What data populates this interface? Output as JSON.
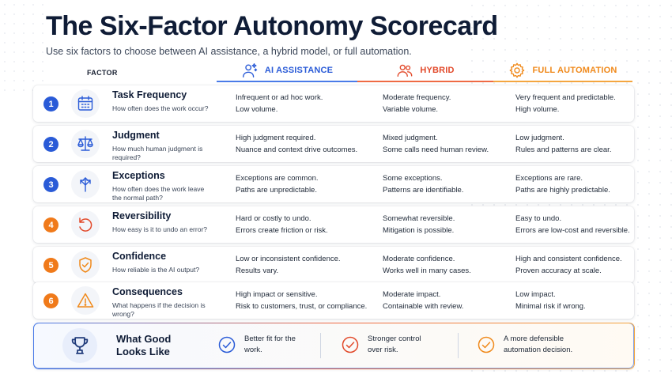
{
  "title": "The Six-Factor Autonomy Scorecard",
  "subtitle": "Use six factors to choose between AI assistance, a hybrid model, or full automation.",
  "factor_header": "FACTOR",
  "columns": {
    "ai": {
      "label": "AI ASSISTANCE",
      "icon": "ai-assistant-icon",
      "color": "#2a5bd7"
    },
    "hybrid": {
      "label": "HYBRID",
      "icon": "people-icon",
      "color": "#e24a2b"
    },
    "full": {
      "label": "FULL AUTOMATION",
      "icon": "gear-icon",
      "color": "#f08a1c"
    }
  },
  "factors": [
    {
      "num": "1",
      "name": "Task Frequency",
      "question": "How often does the work occur?",
      "icon": "calendar-icon",
      "ai": [
        "Infrequent or ad hoc work.",
        "Low volume."
      ],
      "hybrid": [
        "Moderate frequency.",
        "Variable volume."
      ],
      "full": [
        "Very frequent and predictable.",
        "High volume."
      ]
    },
    {
      "num": "2",
      "name": "Judgment",
      "question": "How much human judgment is required?",
      "icon": "scales-icon",
      "ai": [
        "High judgment required.",
        "Nuance and context drive outcomes."
      ],
      "hybrid": [
        "Mixed judgment.",
        "Some calls need human review."
      ],
      "full": [
        "Low judgment.",
        "Rules and patterns are clear."
      ]
    },
    {
      "num": "3",
      "name": "Exceptions",
      "question": "How often does the work leave the normal path?",
      "icon": "branch-arrows-icon",
      "ai": [
        "Exceptions are common.",
        "Paths are unpredictable."
      ],
      "hybrid": [
        "Some exceptions.",
        "Patterns are identifiable."
      ],
      "full": [
        "Exceptions are rare.",
        "Paths are highly predictable."
      ]
    },
    {
      "num": "4",
      "name": "Reversibility",
      "question": "How easy is it to undo an error?",
      "icon": "undo-arrow-icon",
      "ai": [
        "Hard or costly to undo.",
        "Errors create friction or risk."
      ],
      "hybrid": [
        "Somewhat reversible.",
        "Mitigation is possible."
      ],
      "full": [
        "Easy to undo.",
        "Errors are low-cost and reversible."
      ]
    },
    {
      "num": "5",
      "name": "Confidence",
      "question": "How reliable is the AI output?",
      "icon": "shield-check-icon",
      "ai": [
        "Low or inconsistent confidence.",
        "Results vary."
      ],
      "hybrid": [
        "Moderate confidence.",
        "Works well in many cases."
      ],
      "full": [
        "High and consistent confidence.",
        "Proven accuracy at scale."
      ]
    },
    {
      "num": "6",
      "name": "Consequences",
      "question": "What happens if the decision is wrong?",
      "icon": "warning-icon",
      "ai": [
        "High impact or sensitive.",
        "Risk to customers, trust, or compliance."
      ],
      "hybrid": [
        "Moderate impact.",
        "Containable with review."
      ],
      "full": [
        "Low impact.",
        "Minimal risk if wrong."
      ]
    }
  ],
  "good": {
    "title": "What Good Looks Like",
    "icon": "trophy-icon",
    "items": [
      {
        "text": "Better fit for the work.",
        "icon": "check-circle-icon",
        "color": "#2a5bd7"
      },
      {
        "text": "Stronger control over risk.",
        "icon": "check-circle-icon",
        "color": "#e24a2b"
      },
      {
        "text": "A more defensible automation decision.",
        "icon": "check-circle-icon",
        "color": "#f08a1c"
      }
    ]
  }
}
